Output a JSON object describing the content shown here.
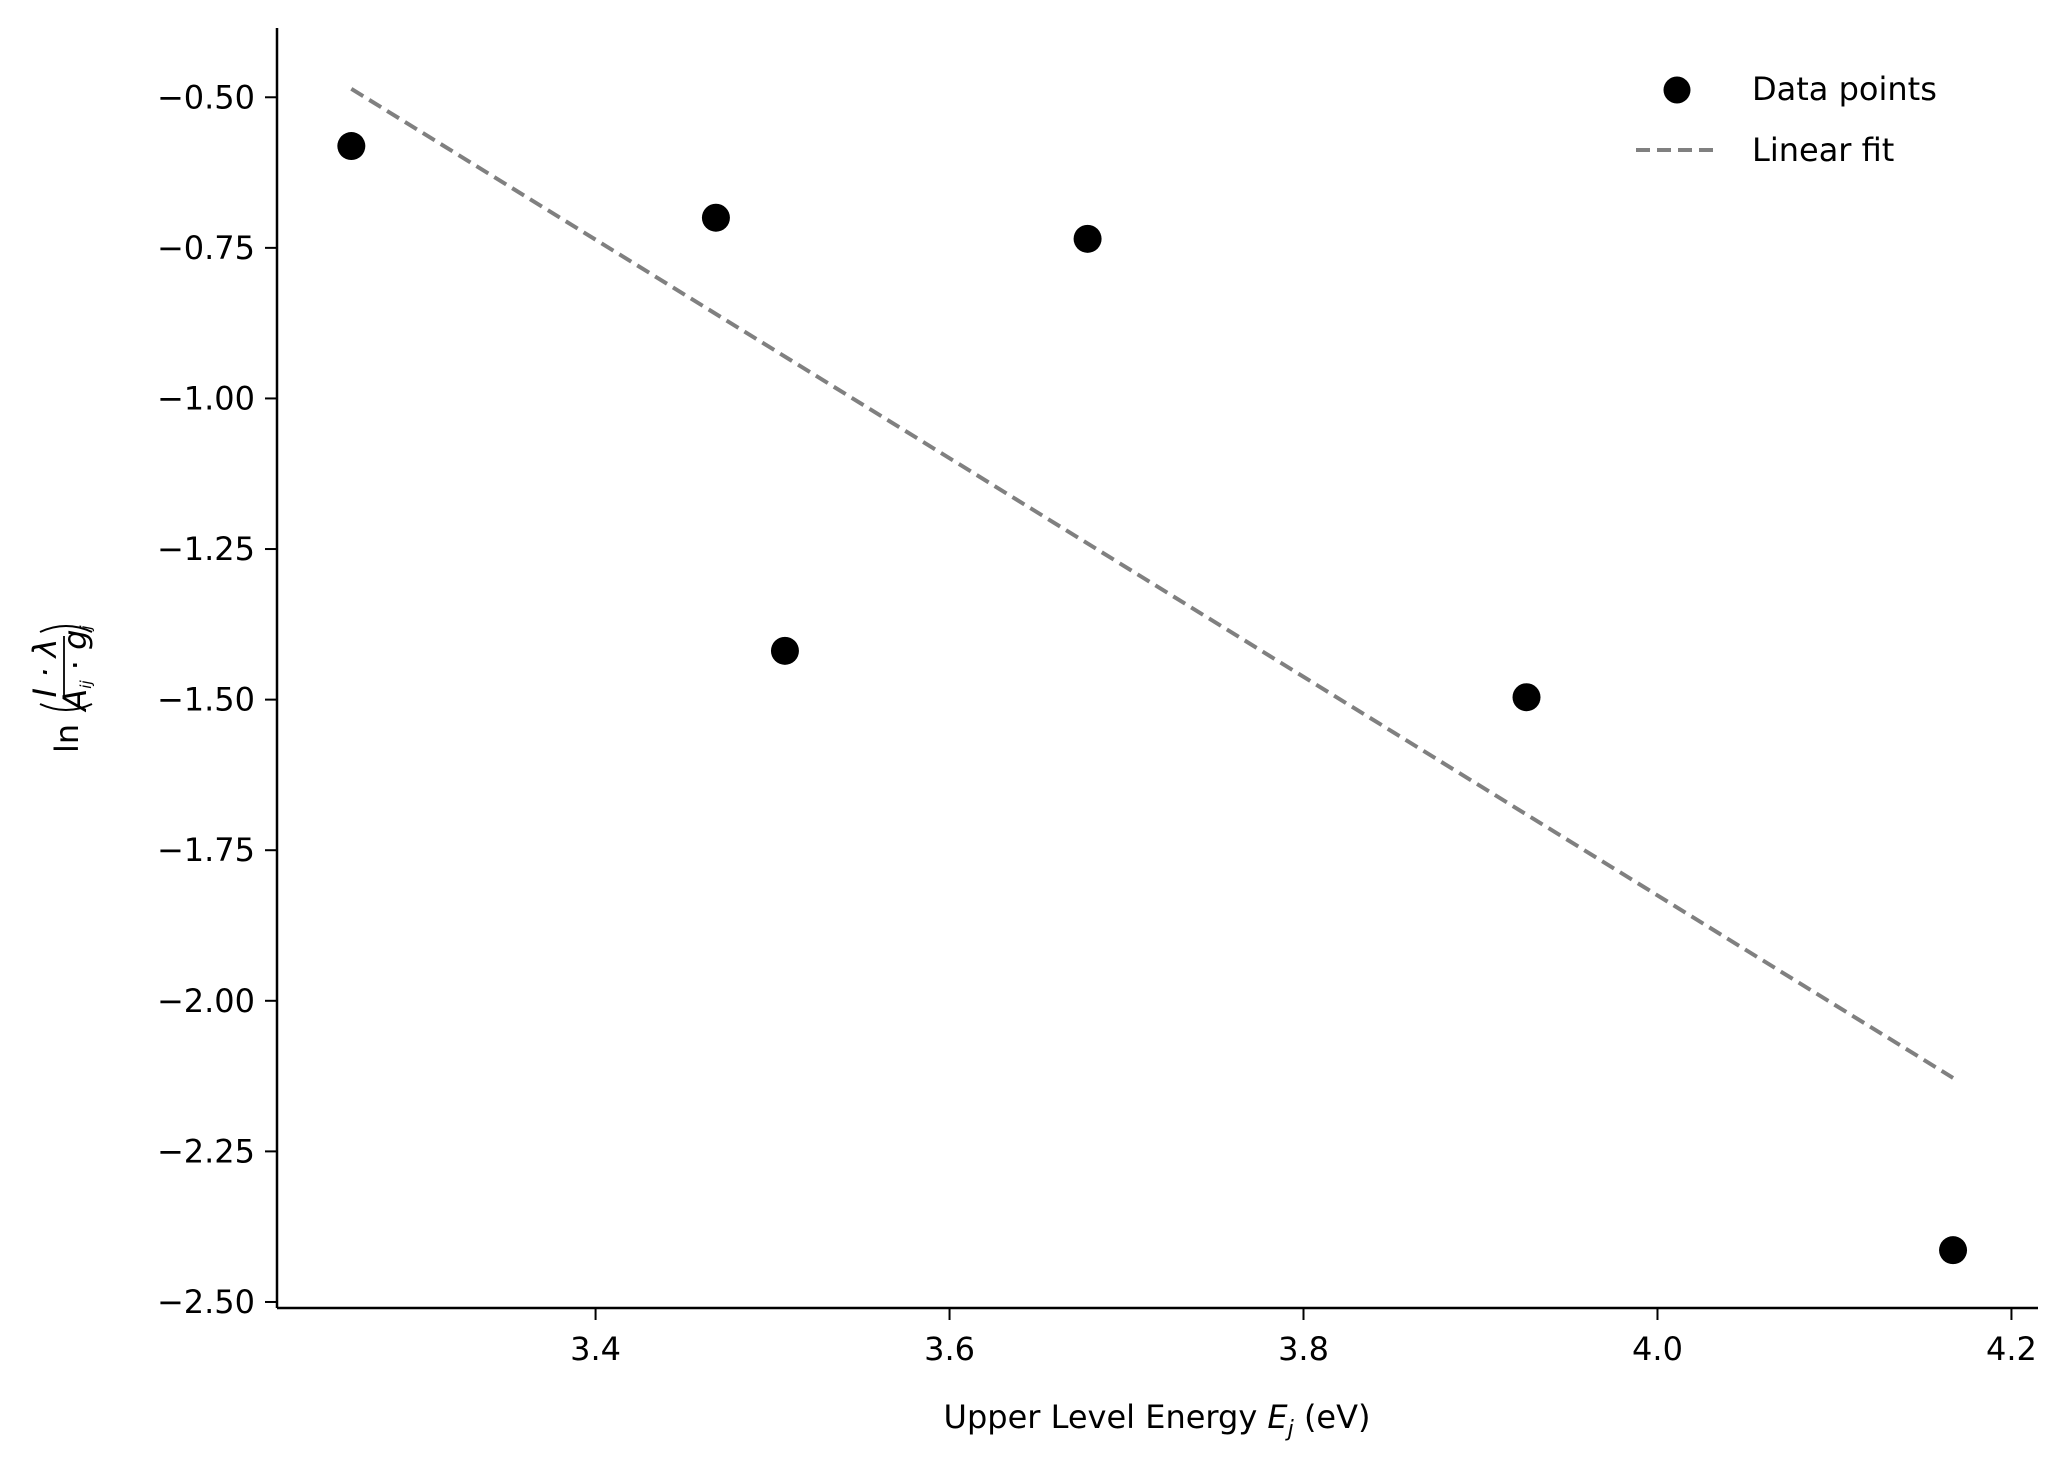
{
  "chart_data": {
    "type": "scatter",
    "title": "",
    "xlabel": {
      "prefix": "Upper Level Energy ",
      "var": "E",
      "sub": "j",
      "suffix": " (eV)"
    },
    "ylabel": {
      "fn": "ln",
      "num": "I · λ",
      "den_a": "A",
      "den_a_sub": "ij",
      "den_dot": " · ",
      "den_g": "g",
      "den_g_sub": "j"
    },
    "xlim": [
      3.22,
      4.215
    ],
    "ylim": [
      -2.51,
      -0.385
    ],
    "xticks": [
      3.4,
      3.6,
      3.8,
      4.0,
      4.2
    ],
    "xtick_labels": [
      "3.4",
      "3.6",
      "3.8",
      "4.0",
      "4.2"
    ],
    "yticks": [
      -0.5,
      -0.75,
      -1.0,
      -1.25,
      -1.5,
      -1.75,
      -2.0,
      -2.25,
      -2.5
    ],
    "ytick_labels": [
      "−0.50",
      "−0.75",
      "−1.00",
      "−1.25",
      "−1.50",
      "−1.75",
      "−2.00",
      "−2.25",
      "−2.50"
    ],
    "grid": false,
    "legend_position": "top-right",
    "series": [
      {
        "name": "Data points",
        "kind": "scatter",
        "color": "#000000",
        "points": [
          {
            "x": 3.262,
            "y": -0.581
          },
          {
            "x": 3.468,
            "y": -0.7
          },
          {
            "x": 3.507,
            "y": -1.419
          },
          {
            "x": 3.678,
            "y": -0.735
          },
          {
            "x": 3.926,
            "y": -1.496
          },
          {
            "x": 4.167,
            "y": -2.414
          }
        ]
      },
      {
        "name": "Linear fit",
        "kind": "line",
        "style": "dashed",
        "color": "#808080",
        "points": [
          {
            "x": 3.262,
            "y": -0.486
          },
          {
            "x": 4.167,
            "y": -2.128
          }
        ]
      }
    ]
  }
}
